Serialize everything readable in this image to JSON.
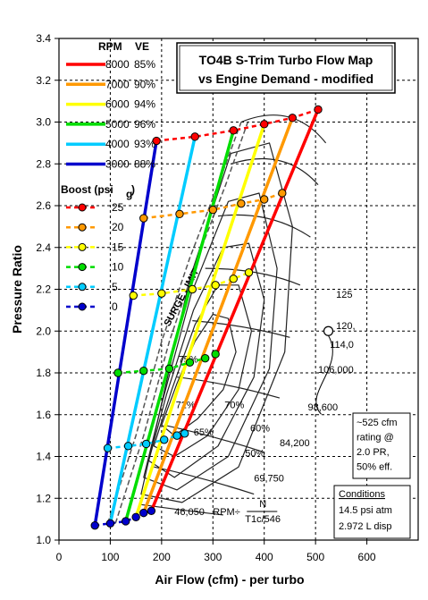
{
  "chart_data": {
    "type": "line",
    "title_lines": [
      "TO4B S-Trim Turbo Flow Map",
      "vs Engine Demand - modified"
    ],
    "xlabel": "Air Flow (cfm) - per turbo",
    "ylabel": "Pressure Ratio",
    "xlim": [
      0,
      700
    ],
    "ylim": [
      1.0,
      3.4
    ],
    "x_ticks": [
      0,
      100,
      200,
      300,
      400,
      500,
      600
    ],
    "y_ticks": [
      1.0,
      1.2,
      1.4,
      1.6,
      1.8,
      2.0,
      2.2,
      2.4,
      2.6,
      2.8,
      3.0,
      3.2,
      3.4
    ],
    "grid": true,
    "legend_rpm": {
      "header_rpm": "RPM",
      "header_ve": "VE",
      "entries": [
        {
          "rpm": "8000",
          "ve": "85%",
          "color": "#ff0000"
        },
        {
          "rpm": "7000",
          "ve": "90%",
          "color": "#ff9900"
        },
        {
          "rpm": "6000",
          "ve": "94%",
          "color": "#ffff00"
        },
        {
          "rpm": "5000",
          "ve": "96%",
          "color": "#00dd00"
        },
        {
          "rpm": "4000",
          "ve": "93%",
          "color": "#00ccff"
        },
        {
          "rpm": "3000",
          "ve": "88%",
          "color": "#0000cc"
        }
      ]
    },
    "legend_boost": {
      "header": "Boost (psi",
      "header_sub": "g",
      "header_close": ")",
      "entries": [
        {
          "boost": "25",
          "color": "#ff0000"
        },
        {
          "boost": "20",
          "color": "#ff9900"
        },
        {
          "boost": "15",
          "color": "#ffff00"
        },
        {
          "boost": "10",
          "color": "#00dd00"
        },
        {
          "boost": "5",
          "color": "#00ccff"
        },
        {
          "boost": "0",
          "color": "#0000cc"
        }
      ]
    },
    "rpm_series": [
      {
        "name": "8000",
        "color": "#ff0000",
        "points": [
          [
            180,
            1.14
          ],
          [
            505,
            3.06
          ]
        ]
      },
      {
        "name": "7000",
        "color": "#ff9900",
        "points": [
          [
            165,
            1.13
          ],
          [
            455,
            3.02
          ]
        ]
      },
      {
        "name": "6000",
        "color": "#ffff00",
        "points": [
          [
            150,
            1.11
          ],
          [
            400,
            2.99
          ]
        ]
      },
      {
        "name": "5000",
        "color": "#00dd00",
        "points": [
          [
            130,
            1.09
          ],
          [
            340,
            2.96
          ]
        ]
      },
      {
        "name": "4000",
        "color": "#00ccff",
        "points": [
          [
            100,
            1.08
          ],
          [
            265,
            2.93
          ]
        ]
      },
      {
        "name": "3000",
        "color": "#0000cc",
        "points": [
          [
            70,
            1.07
          ],
          [
            190,
            2.91
          ]
        ]
      }
    ],
    "boost_series": [
      {
        "name": "25",
        "color": "#ff0000",
        "points": [
          [
            190,
            2.91
          ],
          [
            265,
            2.93
          ],
          [
            340,
            2.96
          ],
          [
            400,
            2.99
          ],
          [
            455,
            3.02
          ],
          [
            505,
            3.06
          ]
        ]
      },
      {
        "name": "20",
        "color": "#ff9900",
        "points": [
          [
            165,
            2.54
          ],
          [
            235,
            2.56
          ],
          [
            300,
            2.58
          ],
          [
            355,
            2.61
          ],
          [
            400,
            2.63
          ],
          [
            435,
            2.66
          ]
        ]
      },
      {
        "name": "15",
        "color": "#ffff00",
        "points": [
          [
            145,
            2.17
          ],
          [
            200,
            2.18
          ],
          [
            260,
            2.2
          ],
          [
            305,
            2.22
          ],
          [
            340,
            2.25
          ],
          [
            370,
            2.28
          ]
        ]
      },
      {
        "name": "10",
        "color": "#00dd00",
        "points": [
          [
            115,
            1.8
          ],
          [
            165,
            1.81
          ],
          [
            215,
            1.82
          ],
          [
            255,
            1.85
          ],
          [
            285,
            1.87
          ],
          [
            305,
            1.89
          ]
        ]
      },
      {
        "name": "5",
        "color": "#00ccff",
        "points": [
          [
            95,
            1.44
          ],
          [
            135,
            1.45
          ],
          [
            170,
            1.46
          ],
          [
            205,
            1.48
          ],
          [
            230,
            1.5
          ],
          [
            245,
            1.51
          ]
        ]
      },
      {
        "name": "0",
        "color": "#0000cc",
        "points": [
          [
            70,
            1.07
          ],
          [
            100,
            1.08
          ],
          [
            130,
            1.09
          ],
          [
            150,
            1.11
          ],
          [
            165,
            1.13
          ],
          [
            180,
            1.14
          ]
        ]
      }
    ],
    "map_labels": {
      "surge_limit": "SURGE LIMIT",
      "eff_labels": [
        "75%",
        "72%",
        "70%",
        "65%",
        "60%",
        "50%"
      ],
      "speed_labels": [
        "125",
        "120,",
        "114,0",
        "106,000",
        "98,600",
        "84,200",
        "69,750",
        "46,050"
      ],
      "rpm_formula": "RPM÷",
      "formula_n": "N",
      "formula_den": "T1c/546"
    },
    "rating_point": {
      "x": 525,
      "y": 2.0
    },
    "rating_note": [
      "~525 cfm",
      "rating @",
      "2.0 PR,",
      "50% eff."
    ],
    "conditions": {
      "title": "Conditions",
      "lines": [
        "14.5 psi atm",
        "2.972 L disp"
      ]
    }
  }
}
